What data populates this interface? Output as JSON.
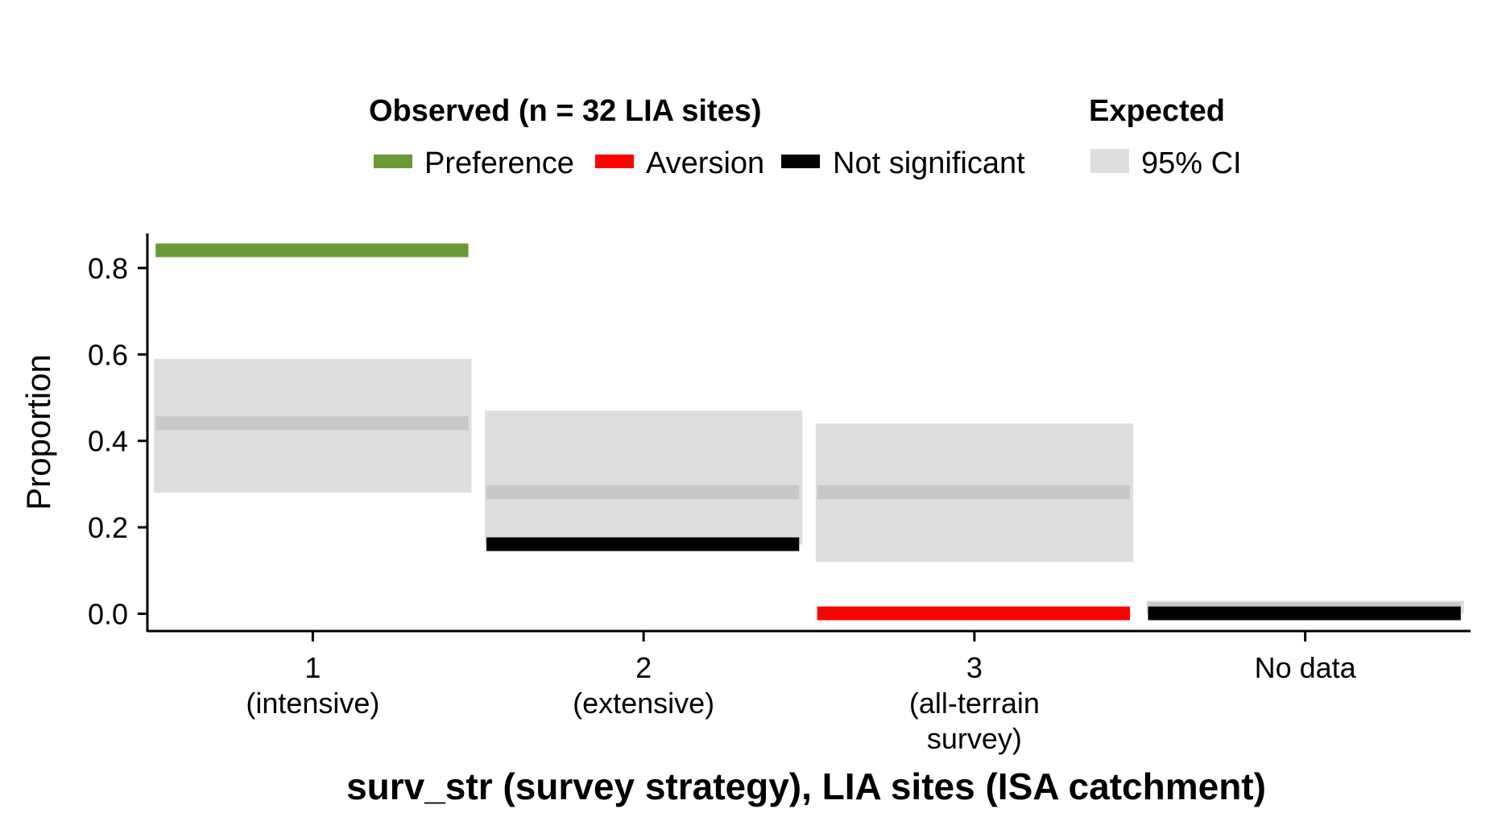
{
  "legend": {
    "observed_title": "Observed (n = 32 LIA sites)",
    "expected_title": "Expected",
    "items": [
      {
        "label": "Preference",
        "color": "#6a9a35"
      },
      {
        "label": "Aversion",
        "color": "#ff0000"
      },
      {
        "label": "Not significant",
        "color": "#000000"
      }
    ],
    "ci_label": "95% CI",
    "ci_color": "#dedede"
  },
  "chart_data": {
    "type": "bar",
    "xlabel": "surv_str (survey strategy), LIA sites (ISA catchment)",
    "ylabel": "Proportion",
    "ylim": [
      -0.04,
      0.88
    ],
    "yticks": [
      "0.0",
      "0.2",
      "0.4",
      "0.6",
      "0.8"
    ],
    "categories": [
      [
        "1",
        "(intensive)"
      ],
      [
        "2",
        "(extensive)"
      ],
      [
        "3",
        "(all-terrain",
        "survey)"
      ],
      [
        "No data"
      ]
    ],
    "observed": [
      {
        "value": 0.84,
        "status": "Preference"
      },
      {
        "value": 0.16,
        "status": "Not significant"
      },
      {
        "value": 0.0,
        "status": "Aversion"
      },
      {
        "value": 0.0,
        "status": "Not significant"
      }
    ],
    "expected": [
      {
        "mean": 0.44,
        "ci_low": 0.28,
        "ci_high": 0.59
      },
      {
        "mean": 0.28,
        "ci_low": 0.16,
        "ci_high": 0.47
      },
      {
        "mean": 0.28,
        "ci_low": 0.12,
        "ci_high": 0.44
      },
      {
        "mean": 0.01,
        "ci_low": 0.0,
        "ci_high": 0.03
      }
    ],
    "grid": false,
    "legend_position": "top"
  }
}
